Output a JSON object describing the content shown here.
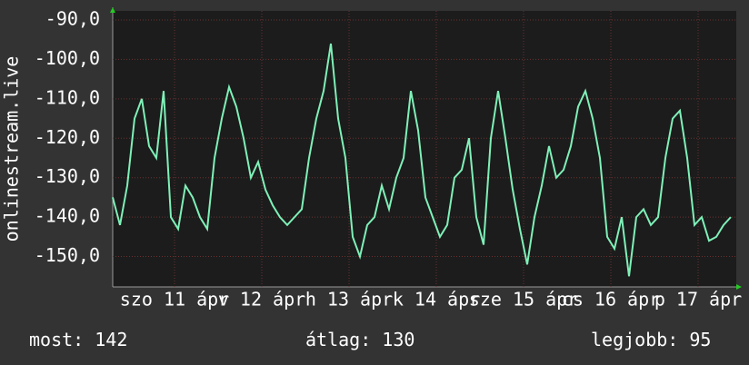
{
  "chart_data": {
    "type": "line",
    "ylabel": "onlinestream.live",
    "x": [
      0,
      2,
      4,
      6,
      8,
      10,
      12,
      14,
      16,
      18,
      20,
      22,
      24,
      26,
      28,
      30,
      32,
      34,
      36,
      38,
      40,
      42,
      44,
      46,
      48,
      50,
      52,
      54,
      56,
      58,
      60,
      62,
      64,
      66,
      68,
      70,
      72,
      74,
      76,
      78,
      80,
      82,
      84,
      86,
      88,
      90,
      92,
      94,
      96,
      98,
      100,
      102,
      104,
      106,
      108,
      110,
      112,
      114,
      116,
      118,
      120,
      122,
      124,
      126,
      128,
      130,
      132,
      134,
      136,
      138,
      140,
      142,
      144,
      146,
      148,
      150,
      152,
      154,
      156,
      158,
      160,
      162,
      164,
      166,
      168,
      170
    ],
    "series": [
      {
        "color": "#7ff0b8",
        "values": [
          -135,
          -142,
          -132,
          -115,
          -110,
          -122,
          -125,
          -108,
          -140,
          -143,
          -132,
          -135,
          -140,
          -143,
          -125,
          -115,
          -107,
          -112,
          -120,
          -130,
          -126,
          -133,
          -137,
          -140,
          -142,
          -140,
          -138,
          -125,
          -115,
          -108,
          -96,
          -115,
          -125,
          -145,
          -150,
          -142,
          -140,
          -132,
          -138,
          -130,
          -125,
          -108,
          -118,
          -135,
          -140,
          -145,
          -142,
          -130,
          -128,
          -120,
          -140,
          -147,
          -120,
          -108,
          -120,
          -133,
          -143,
          -152,
          -140,
          -132,
          -122,
          -130,
          -128,
          -122,
          -112,
          -108,
          -115,
          -125,
          -145,
          -148,
          -140,
          -155,
          -140,
          -138,
          -142,
          -140,
          -125,
          -115,
          -113,
          -125,
          -142,
          -140,
          -146,
          -145,
          -142,
          -140
        ]
      }
    ],
    "xlim": [
      0,
      171.5
    ],
    "xticks": [
      {
        "value": 17,
        "label": "szo 11 ápr"
      },
      {
        "value": 41,
        "label": "v 12 ápr"
      },
      {
        "value": 65,
        "label": "h 13 ápr"
      },
      {
        "value": 89,
        "label": "k 14 ápr"
      },
      {
        "value": 113,
        "label": "sze 15 ápr"
      },
      {
        "value": 137,
        "label": "cs 16 ápr"
      },
      {
        "value": 161,
        "label": "p 17 ápr"
      }
    ],
    "ylim": [
      -157.7,
      -87.7
    ],
    "yticks": [
      {
        "value": -90,
        "label": "-90,0"
      },
      {
        "value": -100,
        "label": "-100,0"
      },
      {
        "value": -110,
        "label": "-110,0"
      },
      {
        "value": -120,
        "label": "-120,0"
      },
      {
        "value": -130,
        "label": "-130,0"
      },
      {
        "value": -140,
        "label": "-140,0"
      },
      {
        "value": -150,
        "label": "-150,0"
      }
    ],
    "grid": true,
    "stats": [
      {
        "label": "most:",
        "value": 142
      },
      {
        "label": "átlag:",
        "value": 130
      },
      {
        "label": "legjobb:",
        "value": 95
      }
    ]
  }
}
